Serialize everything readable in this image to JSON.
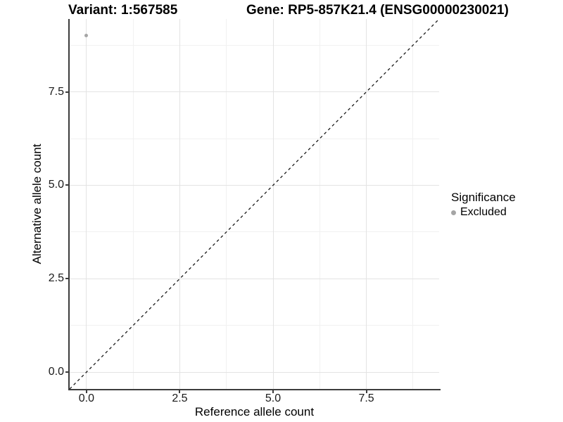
{
  "title": {
    "variant": "Variant: 1:567585",
    "gene": "Gene: RP5-857K21.4 (ENSG00000230021)"
  },
  "chart_data": {
    "type": "scatter",
    "title": "Variant: 1:567585   Gene: RP5-857K21.4 (ENSG00000230021)",
    "xlabel": "Reference allele count",
    "ylabel": "Alternative allele count",
    "xlim": [
      -0.45,
      9.45
    ],
    "ylim": [
      -0.45,
      9.45
    ],
    "x_major_ticks": [
      0.0,
      2.5,
      5.0,
      7.5
    ],
    "x_tick_labels": [
      "0.0",
      "2.5",
      "5.0",
      "7.5"
    ],
    "y_major_ticks": [
      0.0,
      2.5,
      5.0,
      7.5
    ],
    "y_tick_labels": [
      "0.0",
      "2.5",
      "5.0",
      "7.5"
    ],
    "x_minor_ticks": [
      1.25,
      3.75,
      6.25,
      8.75
    ],
    "y_minor_ticks": [
      1.25,
      3.75,
      6.25,
      8.75
    ],
    "grid": true,
    "series": [
      {
        "name": "Excluded",
        "color": "#a5a5a5",
        "marker": "circle",
        "points": [
          {
            "x": 0,
            "y": 9
          }
        ]
      }
    ],
    "reference_line": {
      "type": "identity",
      "style": "dashed",
      "color": "#1a1a1a",
      "from": [
        -0.45,
        -0.45
      ],
      "to": [
        9.45,
        9.45
      ]
    },
    "legend": {
      "position": "right",
      "title": "Significance",
      "entries": [
        {
          "label": "Excluded",
          "color": "#a5a5a5",
          "marker": "circle"
        }
      ]
    }
  }
}
